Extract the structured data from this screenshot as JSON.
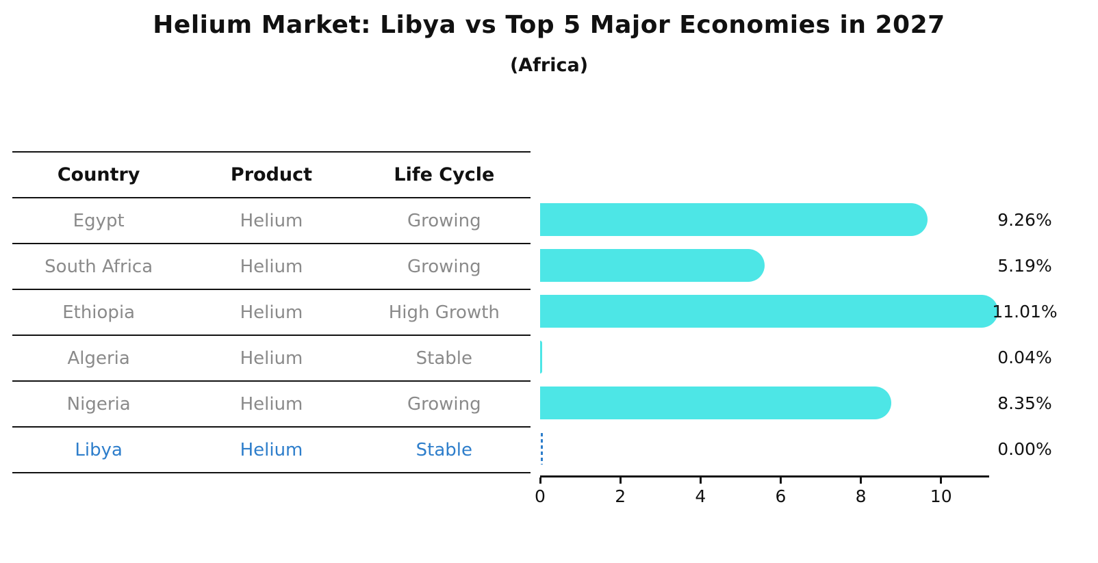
{
  "title": "Helium Market: Libya vs Top 5 Major Economies in 2027",
  "subtitle": "(Africa)",
  "table": {
    "headers": [
      "Country",
      "Product",
      "Life Cycle"
    ],
    "rows": [
      {
        "country": "Egypt",
        "product": "Helium",
        "life_cycle": "Growing",
        "highlighted": false
      },
      {
        "country": "South Africa",
        "product": "Helium",
        "life_cycle": "Growing",
        "highlighted": false
      },
      {
        "country": "Ethiopia",
        "product": "Helium",
        "life_cycle": "High Growth",
        "highlighted": false
      },
      {
        "country": "Algeria",
        "product": "Helium",
        "life_cycle": "Stable",
        "highlighted": false
      },
      {
        "country": "Nigeria",
        "product": "Helium",
        "life_cycle": "Growing",
        "highlighted": true,
        "_note": null
      },
      {
        "country": "Libya",
        "product": "Helium",
        "life_cycle": "Stable",
        "highlighted": true
      }
    ]
  },
  "chart_data": {
    "type": "bar",
    "orientation": "horizontal",
    "title": "Helium Market: Libya vs Top 5 Major Economies in 2027",
    "subtitle": "(Africa)",
    "categories": [
      "Egypt",
      "South Africa",
      "Ethiopia",
      "Algeria",
      "Nigeria",
      "Libya"
    ],
    "values": [
      9.26,
      5.19,
      11.01,
      0.04,
      8.35,
      0.0
    ],
    "value_labels": [
      "9.26%",
      "5.19%",
      "11.01%",
      "0.04%",
      "8.35%",
      "0.00%"
    ],
    "x_ticks": [
      0,
      2,
      4,
      6,
      8,
      10
    ],
    "xlim": [
      0,
      11.2
    ],
    "grid": false,
    "legend": false,
    "bar_color": "#4de6e6",
    "highlight_color": "#2e7ecb",
    "highlight_index": 5,
    "highlight_style": "dashed-zero-line"
  }
}
